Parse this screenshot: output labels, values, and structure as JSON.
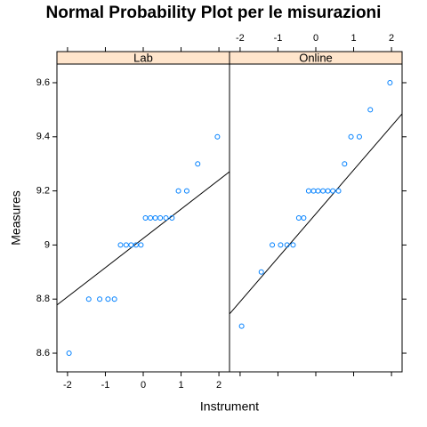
{
  "chart_data": {
    "type": "scatter",
    "title": "Normal Probability Plot per le misurazioni",
    "x_label": "Instrument",
    "y_label": "Measures",
    "ylim": [
      8.531,
      9.669
    ],
    "yticks": [
      8.6,
      8.8,
      9.0,
      9.2,
      9.4,
      9.6
    ],
    "point_color": "#0080ff",
    "strip_color": "#ffe5cc",
    "panels": [
      {
        "name": "Lab",
        "xlim": [
          -2.28,
          2.28
        ],
        "xticks": [
          -2,
          -1,
          0,
          1,
          2
        ],
        "x": [
          -1.96,
          -1.44,
          -1.15,
          -0.93,
          -0.76,
          -0.6,
          -0.45,
          -0.32,
          -0.19,
          -0.06,
          0.06,
          0.19,
          0.32,
          0.45,
          0.6,
          0.76,
          0.93,
          1.15,
          1.44,
          1.96
        ],
        "y": [
          8.6,
          8.8,
          8.8,
          8.8,
          8.8,
          9.0,
          9.0,
          9.0,
          9.0,
          9.0,
          9.1,
          9.1,
          9.1,
          9.1,
          9.1,
          9.1,
          9.2,
          9.2,
          9.3,
          9.4
        ],
        "reference_line": {
          "x": [
            -2.28,
            2.28
          ],
          "y": [
            8.778,
            9.271
          ]
        }
      },
      {
        "name": "Online",
        "xlim": [
          -2.28,
          2.28
        ],
        "xticks": [
          -2,
          -1,
          0,
          1,
          2
        ],
        "x": [
          -1.96,
          -1.44,
          -1.15,
          -0.93,
          -0.76,
          -0.6,
          -0.45,
          -0.32,
          -0.19,
          -0.06,
          0.06,
          0.19,
          0.32,
          0.45,
          0.6,
          0.76,
          0.93,
          1.15,
          1.44,
          1.96
        ],
        "y": [
          8.7,
          8.9,
          9.0,
          9.0,
          9.0,
          9.0,
          9.1,
          9.1,
          9.2,
          9.2,
          9.2,
          9.2,
          9.2,
          9.2,
          9.2,
          9.3,
          9.4,
          9.4,
          9.5,
          9.6
        ],
        "reference_line": {
          "x": [
            -2.28,
            2.28
          ],
          "y": [
            8.745,
            9.485
          ]
        }
      }
    ]
  }
}
